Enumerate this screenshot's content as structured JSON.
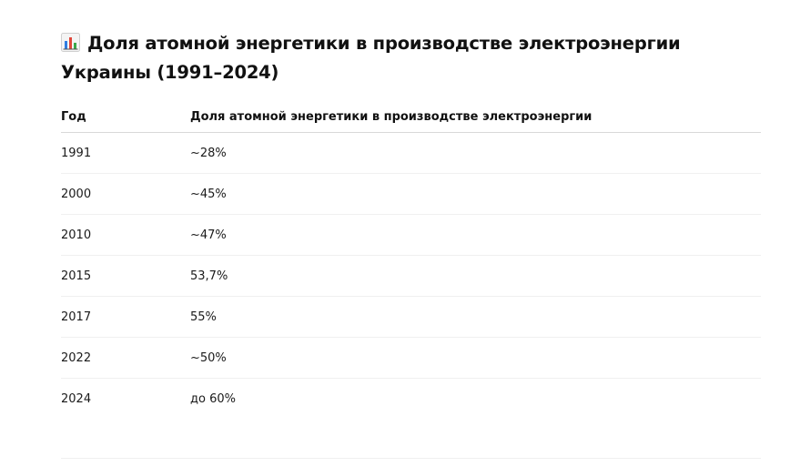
{
  "title": {
    "icon": "bar-chart-icon",
    "text": "Доля атомной энергетики в производстве электроэнергии Украины (1991–2024)"
  },
  "table": {
    "headers": [
      "Год",
      "Доля атомной энергетики в производстве электроэнергии"
    ],
    "rows": [
      {
        "year": "1991",
        "share": "~28%"
      },
      {
        "year": "2000",
        "share": "~45%"
      },
      {
        "year": "2010",
        "share": "~47%"
      },
      {
        "year": "2015",
        "share": "53,7%"
      },
      {
        "year": "2017",
        "share": "55%"
      },
      {
        "year": "2022",
        "share": "~50%"
      },
      {
        "year": "2024",
        "share": "до 60%"
      }
    ]
  },
  "colors": {
    "bar_blue": "#2f7de1",
    "bar_red": "#e0453a",
    "bar_green": "#3aa84a",
    "axis": "#555555"
  }
}
